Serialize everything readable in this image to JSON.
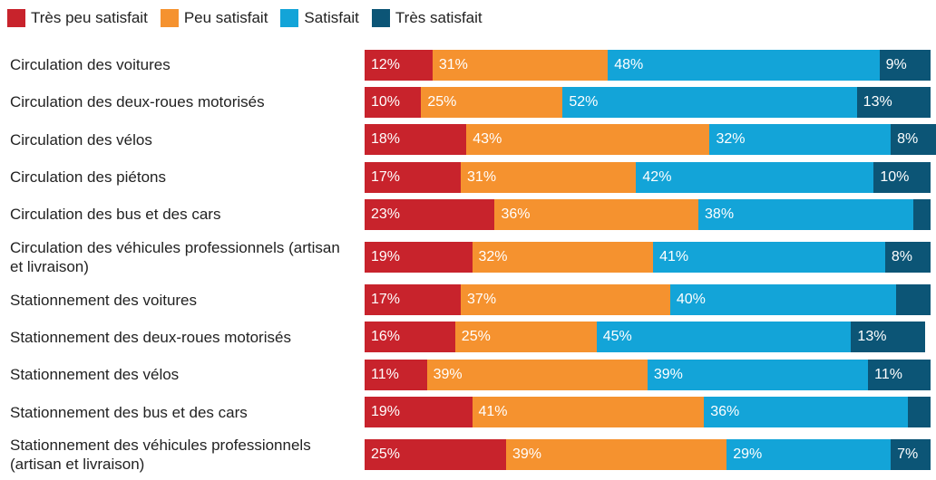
{
  "chart_data": {
    "type": "stacked-bar-horizontal",
    "categories": [
      "Circulation des voitures",
      "Circulation des deux-roues motorisés",
      "Circulation des vélos",
      "Circulation des piétons",
      "Circulation des bus et des cars",
      "Circulation des véhicules professionnels (artisan et livraison)",
      "Stationnement des voitures",
      "Stationnement des deux-roues motorisés",
      "Stationnement des vélos",
      "Stationnement des bus et des cars",
      "Stationnement des véhicules professionnels (artisan et livraison)"
    ],
    "series": [
      {
        "name": "Très peu satisfait",
        "color": "#c8232c",
        "values": [
          12,
          10,
          18,
          17,
          23,
          19,
          17,
          16,
          11,
          19,
          25
        ],
        "value_labels": [
          "12%",
          "10%",
          "18%",
          "17%",
          "23%",
          "19%",
          "17%",
          "16%",
          "11%",
          "19%",
          "25%"
        ]
      },
      {
        "name": "Peu satisfait",
        "color": "#f5922f",
        "values": [
          31,
          25,
          43,
          31,
          36,
          32,
          37,
          25,
          39,
          41,
          39
        ],
        "value_labels": [
          "31%",
          "25%",
          "43%",
          "31%",
          "36%",
          "32%",
          "37%",
          "25%",
          "39%",
          "41%",
          "39%"
        ]
      },
      {
        "name": "Satisfait",
        "color": "#13a4d8",
        "values": [
          48,
          52,
          32,
          42,
          38,
          41,
          40,
          45,
          39,
          36,
          29
        ],
        "value_labels": [
          "48%",
          "52%",
          "32%",
          "42%",
          "38%",
          "41%",
          "40%",
          "45%",
          "39%",
          "36%",
          "29%"
        ]
      },
      {
        "name": "Très satisfait",
        "color": "#0c5576",
        "values": [
          9,
          13,
          8,
          10,
          3,
          8,
          6,
          13,
          11,
          4,
          7
        ],
        "value_labels": [
          "9%",
          "13%",
          "8%",
          "10%",
          null,
          "8%",
          null,
          "13%",
          "11%",
          null,
          "7%"
        ]
      }
    ]
  }
}
